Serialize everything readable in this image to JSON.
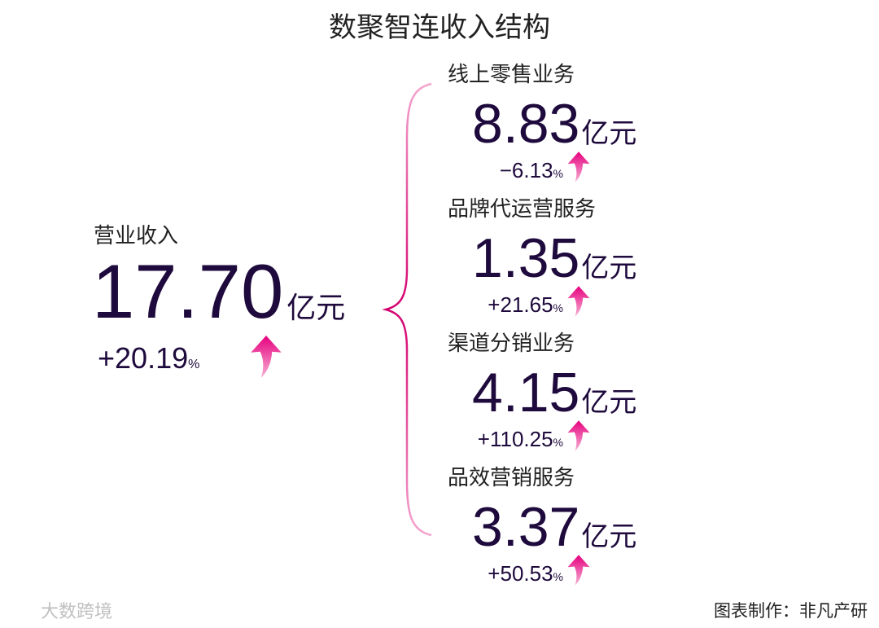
{
  "title": "数聚智连收入结构",
  "total": {
    "label": "营业收入",
    "value": "17.70",
    "unit": "亿元",
    "change": "+20.19",
    "change_unit": "%"
  },
  "segments": [
    {
      "label": "线上零售业务",
      "value": "8.83",
      "unit": "亿元",
      "change": "−6.13",
      "change_unit": "%"
    },
    {
      "label": "品牌代运营服务",
      "value": "1.35",
      "unit": "亿元",
      "change": "+21.65",
      "change_unit": "%"
    },
    {
      "label": "渠道分销业务",
      "value": "4.15",
      "unit": "亿元",
      "change": "+110.25",
      "change_unit": "%"
    },
    {
      "label": "品效营销服务",
      "value": "3.37",
      "unit": "亿元",
      "change": "+50.53",
      "change_unit": "%"
    }
  ],
  "watermark": "大数跨境",
  "credit": "图表制作：非凡产研"
}
